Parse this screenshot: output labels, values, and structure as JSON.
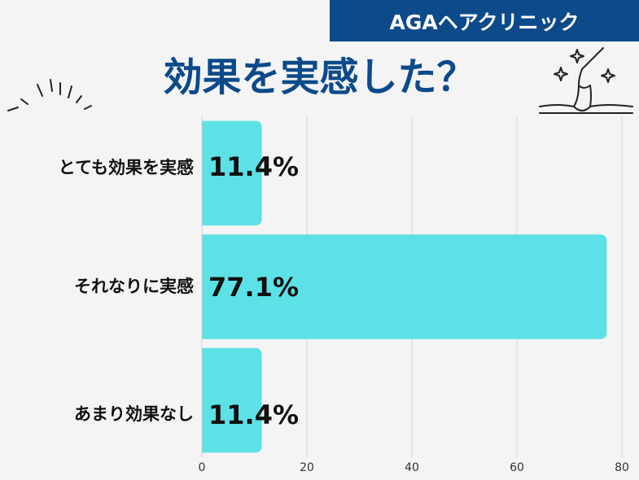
{
  "header": {
    "badge": "AGAヘアクリニック",
    "title": "効果を実感した？"
  },
  "colors": {
    "bar": "#5ce1e6",
    "accent": "#0c4a8a"
  },
  "icons": {
    "left": "sparkle-lines-icon",
    "right": "hair-follicle-icon"
  },
  "chart_data": {
    "type": "bar",
    "orientation": "horizontal",
    "title": "効果を実感した？",
    "categories": [
      "とても効果を実感",
      "それなりに実感",
      "あまり効果なし"
    ],
    "values": [
      11.4,
      77.1,
      11.4
    ],
    "labels": [
      "11.4%",
      "77.1%",
      "11.4%"
    ],
    "xlim": [
      0,
      80
    ],
    "xticks": [
      0,
      20,
      40,
      60,
      80
    ],
    "grid": true
  }
}
